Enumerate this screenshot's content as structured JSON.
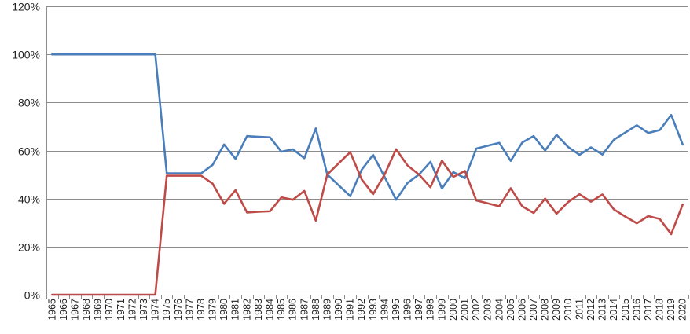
{
  "chart_data": {
    "type": "line",
    "title": "",
    "xlabel": "",
    "ylabel": "",
    "ylim": [
      0,
      1.2
    ],
    "y_tick_values": [
      0,
      0.2,
      0.4,
      0.6,
      0.8,
      1.0,
      1.2
    ],
    "y_tick_labels": [
      "0%",
      "20%",
      "40%",
      "60%",
      "80%",
      "100%",
      "120%"
    ],
    "grid": "horizontal",
    "legend": "none",
    "x": [
      "1965",
      "1966",
      "1967",
      "1968",
      "1969",
      "1970",
      "1971",
      "1972",
      "1973",
      "1974",
      "1975",
      "1976",
      "1977",
      "1978",
      "1979",
      "1980",
      "1981",
      "1982",
      "1983",
      "1984",
      "1985",
      "1986",
      "1987",
      "1988",
      "1989",
      "1990",
      "1991",
      "1992",
      "1993",
      "1994",
      "1995",
      "1996",
      "1997",
      "1998",
      "1999",
      "2000",
      "2001",
      "2002",
      "2003",
      "2004",
      "2005",
      "2006",
      "2007",
      "2008",
      "2009",
      "2010",
      "2011",
      "2012",
      "2013",
      "2014",
      "2015",
      "2016",
      "2017",
      "2018",
      "2019",
      "2020"
    ],
    "series": [
      {
        "color": "#4a7ebb",
        "values": [
          1.0,
          1.0,
          1.0,
          1.0,
          1.0,
          1.0,
          1.0,
          1.0,
          1.0,
          1.0,
          0.505,
          0.505,
          0.505,
          0.505,
          0.54,
          0.625,
          0.565,
          0.66,
          0.657,
          0.655,
          0.595,
          0.605,
          0.568,
          0.692,
          0.5,
          0.455,
          0.41,
          0.52,
          0.582,
          0.49,
          0.395,
          0.465,
          0.5,
          0.553,
          0.442,
          0.51,
          0.485,
          0.608,
          0.62,
          0.632,
          0.557,
          0.633,
          0.66,
          0.6,
          0.665,
          0.615,
          0.582,
          0.613,
          0.583,
          0.645,
          0.675,
          0.705,
          0.673,
          0.685,
          0.748,
          0.625
        ]
      },
      {
        "color": "#be4b48",
        "values": [
          0,
          0,
          0,
          0,
          0,
          0,
          0,
          0,
          0,
          0,
          0.495,
          0.495,
          0.495,
          0.495,
          0.462,
          0.378,
          0.435,
          0.342,
          0.345,
          0.347,
          0.405,
          0.395,
          0.432,
          0.308,
          0.5,
          0.547,
          0.593,
          0.48,
          0.418,
          0.5,
          0.605,
          0.538,
          0.5,
          0.447,
          0.558,
          0.49,
          0.515,
          0.392,
          0.38,
          0.368,
          0.443,
          0.368,
          0.34,
          0.4,
          0.337,
          0.385,
          0.418,
          0.387,
          0.417,
          0.355,
          0.325,
          0.297,
          0.327,
          0.315,
          0.252,
          0.375
        ]
      }
    ]
  }
}
